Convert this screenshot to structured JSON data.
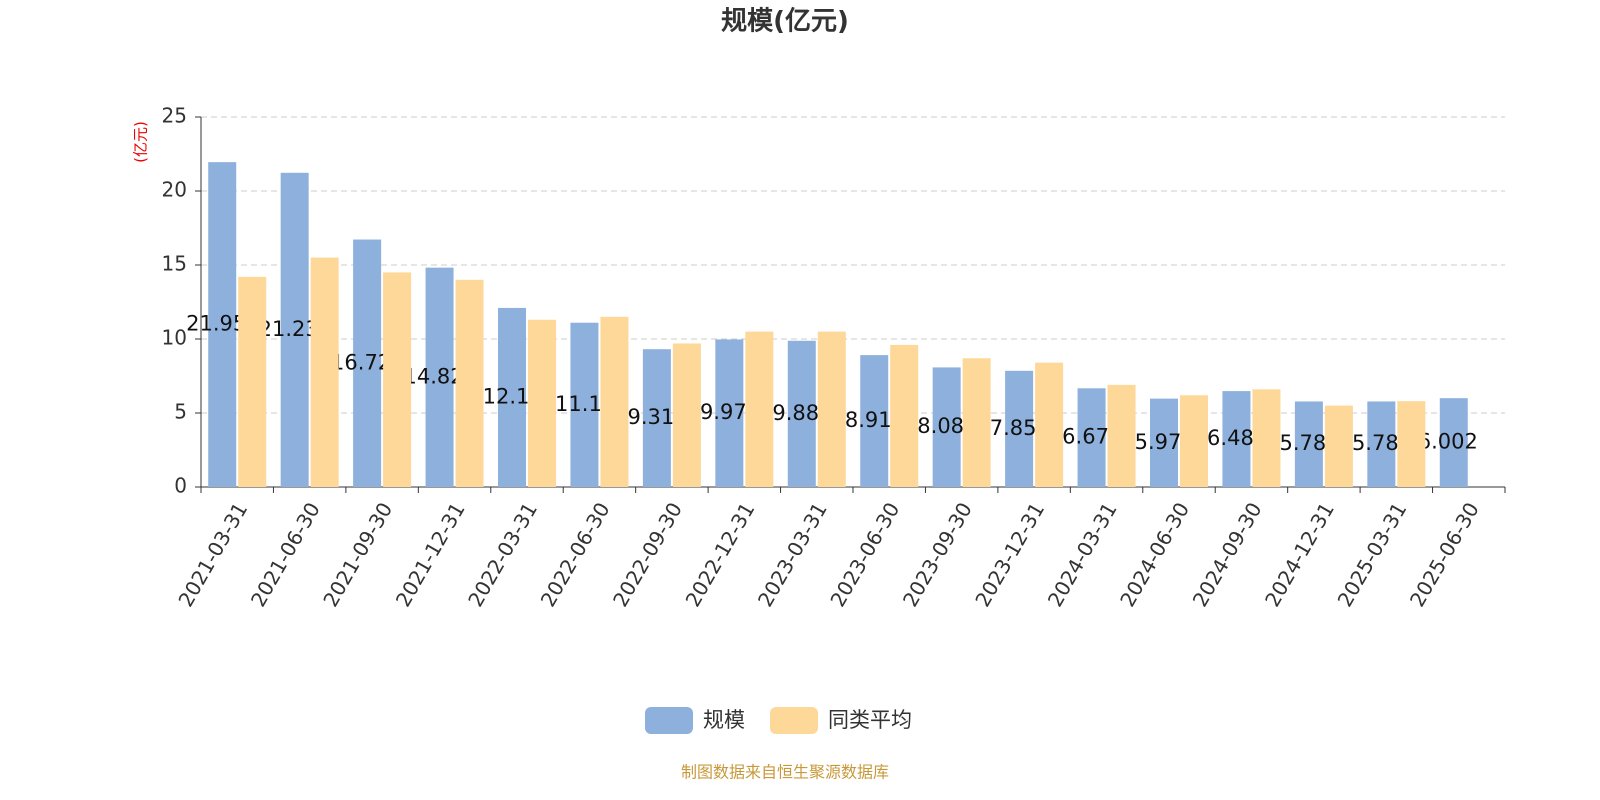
{
  "chart_data": {
    "type": "bar",
    "title": "规模(亿元)",
    "y_axis_label": "(亿元)",
    "categories": [
      "2021-03-31",
      "2021-06-30",
      "2021-09-30",
      "2021-12-31",
      "2022-03-31",
      "2022-06-30",
      "2022-09-30",
      "2022-12-31",
      "2023-03-31",
      "2023-06-30",
      "2023-09-30",
      "2023-12-31",
      "2024-03-31",
      "2024-06-30",
      "2024-09-30",
      "2024-12-31",
      "2025-03-31",
      "2025-06-30"
    ],
    "series": [
      {
        "name": "规模",
        "color": "#8eb0dc",
        "labels": true,
        "values": [
          21.95,
          21.23,
          16.72,
          14.82,
          12.1,
          11.1,
          9.31,
          9.97,
          9.88,
          8.91,
          8.08,
          7.85,
          6.67,
          5.97,
          6.48,
          5.78,
          5.78,
          6.002
        ]
      },
      {
        "name": "同类平均",
        "color": "#fdd898",
        "labels": false,
        "values": [
          14.2,
          15.5,
          14.5,
          14.0,
          11.3,
          11.5,
          9.7,
          10.5,
          10.5,
          9.6,
          8.7,
          8.4,
          6.9,
          6.2,
          6.6,
          5.5,
          5.8,
          null
        ]
      }
    ],
    "ylim": [
      0,
      25
    ],
    "yticks": [
      0,
      5,
      10,
      15,
      20,
      25
    ],
    "grid": true,
    "source": "制图数据来自恒生聚源数据库"
  }
}
